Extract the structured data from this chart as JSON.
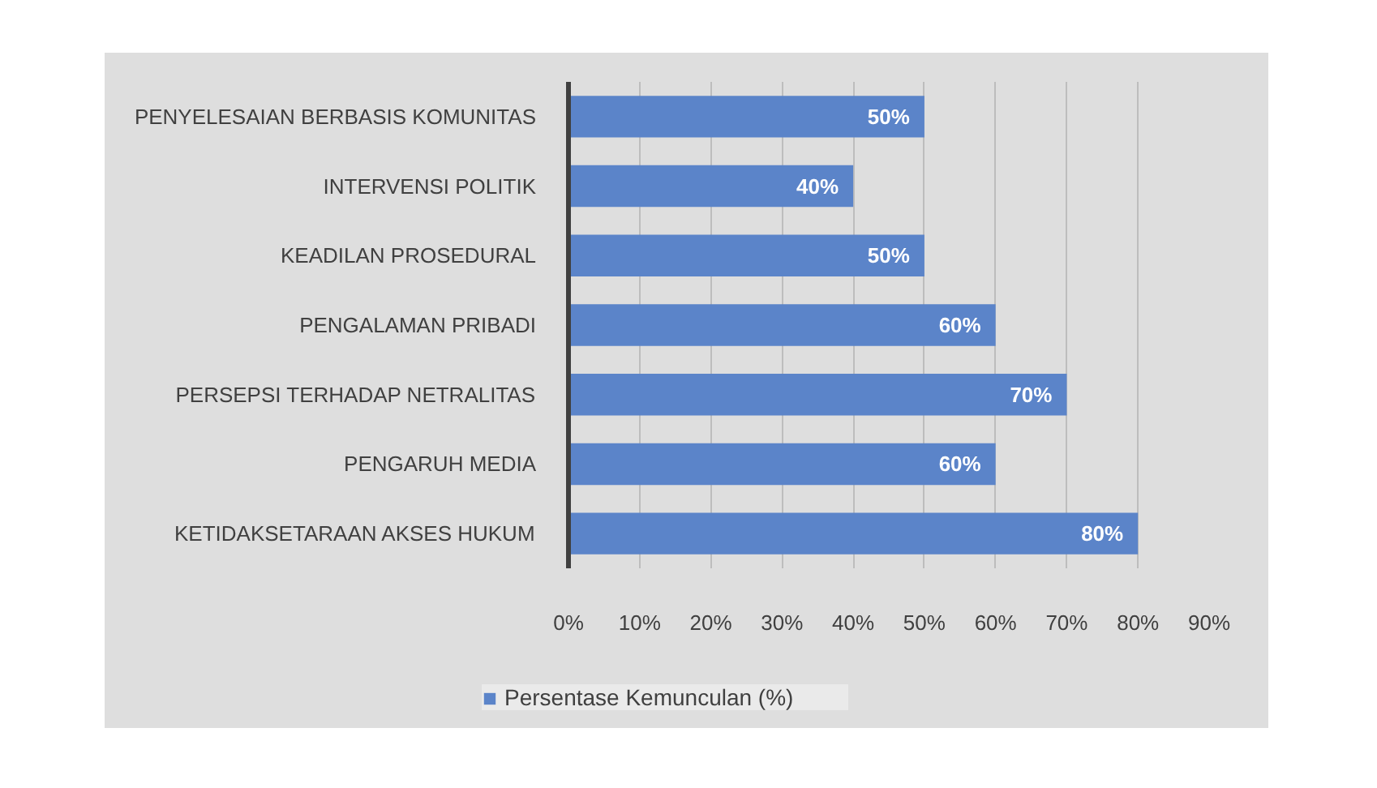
{
  "chart_data": {
    "type": "bar",
    "orientation": "horizontal",
    "categories": [
      "PENYELESAIAN BERBASIS KOMUNITAS",
      "INTERVENSI POLITIK",
      "KEADILAN PROSEDURAL",
      "PENGALAMAN PRIBADI",
      "PERSEPSI TERHADAP NETRALITAS",
      "PENGARUH MEDIA",
      "KETIDAKSETARAAN AKSES HUKUM"
    ],
    "series": [
      {
        "name": "Persentase Kemunculan (%)",
        "color": "#5b84c9",
        "values": [
          50,
          40,
          50,
          60,
          70,
          60,
          80
        ],
        "value_labels": [
          "50%",
          "40%",
          "50%",
          "60%",
          "70%",
          "60%",
          "80%"
        ]
      }
    ],
    "xlim": [
      0,
      90
    ],
    "xticks": [
      {
        "value": 0,
        "label": "0%"
      },
      {
        "value": 10,
        "label": "10%"
      },
      {
        "value": 20,
        "label": "20%"
      },
      {
        "value": 30,
        "label": "30%"
      },
      {
        "value": 40,
        "label": "40%"
      },
      {
        "value": 50,
        "label": "50%"
      },
      {
        "value": 60,
        "label": "60%"
      },
      {
        "value": 70,
        "label": "70%"
      },
      {
        "value": 80,
        "label": "80%"
      },
      {
        "value": 90,
        "label": "90%"
      }
    ],
    "grid": "x",
    "legend": "bottom"
  }
}
